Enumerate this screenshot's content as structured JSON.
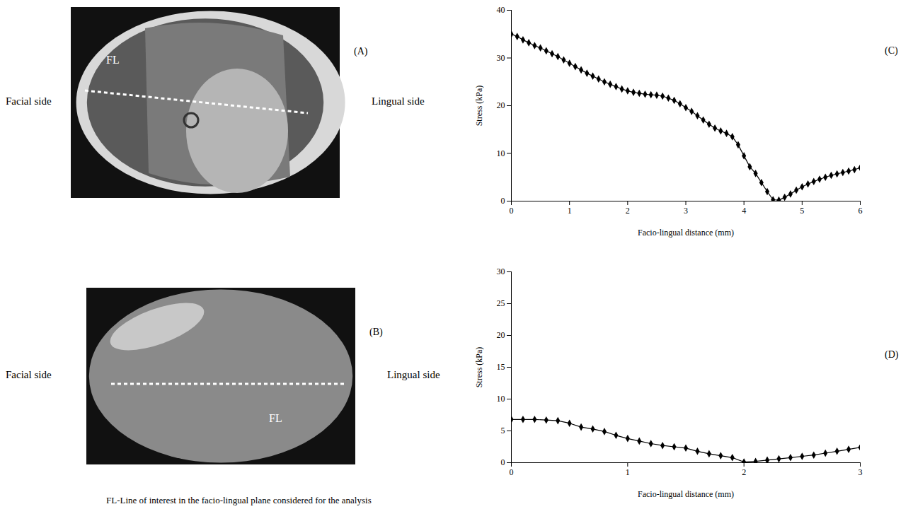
{
  "images": [
    {
      "label": "(A)",
      "line_label": "FL",
      "left_text": "Facial side",
      "right_text": "Lingual side"
    },
    {
      "label": "(B)",
      "line_label": "FL",
      "left_text": "Facial side",
      "right_text": "Lingual side"
    }
  ],
  "caption": "FL-Line of interest in the facio-lingual plane considered for the analysis",
  "chart_data": [
    {
      "type": "line",
      "title": "(C)",
      "x_label": "Facio-lingual distance (mm)",
      "y_label": "Stress (kPa)",
      "marker": "diamond",
      "color": "#000000",
      "grid": false,
      "x": [
        0,
        0.1,
        0.2,
        0.3,
        0.4,
        0.5,
        0.6,
        0.7,
        0.8,
        0.9,
        1.0,
        1.1,
        1.2,
        1.3,
        1.4,
        1.5,
        1.6,
        1.7,
        1.8,
        1.9,
        2.0,
        2.1,
        2.2,
        2.3,
        2.4,
        2.5,
        2.6,
        2.7,
        2.8,
        2.9,
        3.0,
        3.1,
        3.2,
        3.3,
        3.4,
        3.5,
        3.6,
        3.7,
        3.8,
        3.9,
        4.0,
        4.1,
        4.2,
        4.3,
        4.4,
        4.5,
        4.6,
        4.7,
        4.8,
        4.9,
        5.0,
        5.1,
        5.2,
        5.3,
        5.4,
        5.5,
        5.6,
        5.7,
        5.8,
        5.9,
        6.0
      ],
      "values": [
        35,
        34.5,
        33.8,
        33.2,
        32.6,
        32.1,
        31.5,
        30.9,
        30.3,
        29.6,
        28.9,
        28.2,
        27.5,
        26.8,
        26.2,
        25.6,
        25.0,
        24.5,
        24.0,
        23.5,
        23.1,
        22.8,
        22.6,
        22.4,
        22.3,
        22.2,
        22.0,
        21.6,
        21.1,
        20.4,
        19.6,
        18.8,
        17.9,
        17.0,
        16.1,
        15.3,
        14.7,
        14.2,
        13.5,
        11.8,
        9.5,
        7.2,
        5.8,
        3.9,
        2.0,
        0.3,
        0.2,
        0.8,
        1.5,
        2.3,
        3.0,
        3.6,
        4.1,
        4.6,
        5.0,
        5.4,
        5.7,
        6.0,
        6.3,
        6.6,
        7.0
      ],
      "xlim": [
        0,
        6
      ],
      "xticks": [
        0,
        1,
        2,
        3,
        4,
        5,
        6
      ],
      "ylim": [
        0,
        40
      ],
      "yticks": [
        0,
        10,
        20,
        30,
        40
      ]
    },
    {
      "type": "line",
      "title": "(D)",
      "x_label": "Facio-lingual distance (mm)",
      "y_label": "Stress (kPa)",
      "marker": "diamond",
      "color": "#000000",
      "grid": false,
      "x": [
        0,
        0.1,
        0.2,
        0.3,
        0.4,
        0.5,
        0.6,
        0.7,
        0.8,
        0.9,
        1.0,
        1.1,
        1.2,
        1.3,
        1.4,
        1.5,
        1.6,
        1.7,
        1.8,
        1.9,
        2.0,
        2.1,
        2.2,
        2.3,
        2.4,
        2.5,
        2.6,
        2.7,
        2.8,
        2.9,
        3.0
      ],
      "values": [
        6.8,
        6.8,
        6.8,
        6.7,
        6.6,
        6.2,
        5.6,
        5.3,
        4.9,
        4.3,
        3.8,
        3.4,
        3.0,
        2.7,
        2.5,
        2.3,
        1.8,
        1.4,
        1.1,
        0.8,
        0.1,
        0.2,
        0.4,
        0.6,
        0.8,
        1.0,
        1.2,
        1.5,
        1.8,
        2.1,
        2.4
      ],
      "xlim": [
        0,
        3
      ],
      "xticks": [
        0,
        1,
        2,
        3
      ],
      "ylim": [
        0,
        30
      ],
      "yticks": [
        0,
        5,
        10,
        15,
        20,
        25,
        30
      ]
    }
  ]
}
